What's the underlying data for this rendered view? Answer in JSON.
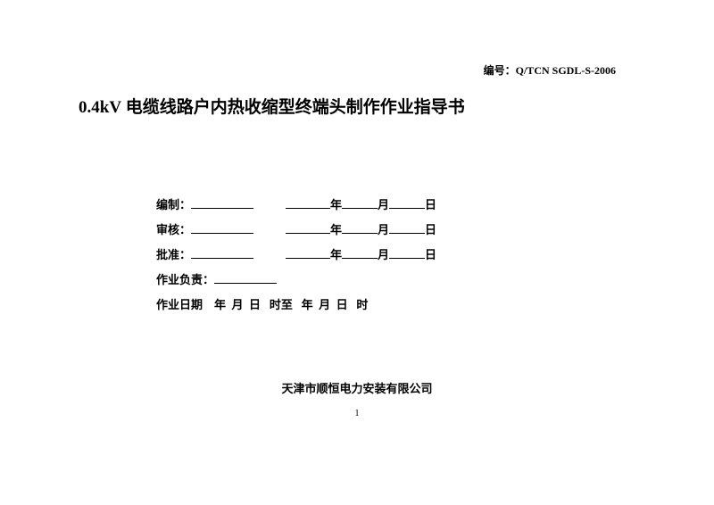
{
  "docNumber": "编号：Q/TCN SGDL-S-2006",
  "title": {
    "voltage": "0.4kV",
    "rest": " 电缆线路户内热收缩型终端头制作作业指导书"
  },
  "labels": {
    "compile": "编制：",
    "review": "审核：",
    "approve": "批准：",
    "owner": "作业负责：",
    "dateLabel": "作业日期",
    "year": "年",
    "month": "月",
    "day": "日",
    "hour": "时",
    "to": "时至"
  },
  "company": "天津市顺恒电力安装有限公司",
  "pageNum": "1"
}
